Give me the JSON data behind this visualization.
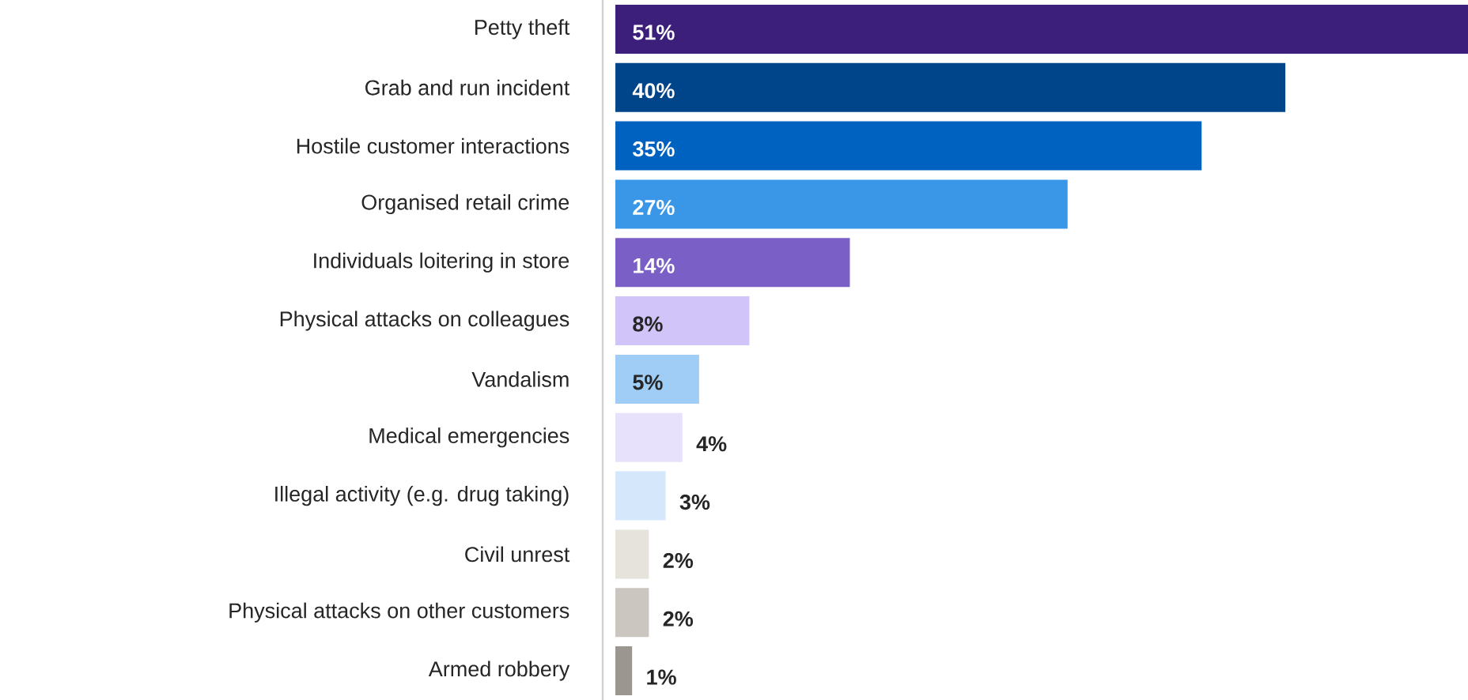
{
  "chart_data": {
    "type": "bar",
    "orientation": "horizontal",
    "categories": [
      "Petty theft",
      "Grab and run incident",
      "Hostile customer interactions",
      "Organised retail crime",
      "Individuals loitering in store",
      "Physical attacks on colleagues",
      "Vandalism",
      "Medical emergencies",
      "Illegal activity (e.g. drug taking)",
      "Civil unrest",
      "Physical attacks on other customers",
      "Armed robbery"
    ],
    "values": [
      51,
      40,
      35,
      27,
      14,
      8,
      5,
      4,
      3,
      2,
      2,
      1
    ],
    "colors": [
      "#3b1f7a",
      "#004489",
      "#0062c0",
      "#3a97e8",
      "#7a5fc7",
      "#d1c4f8",
      "#a0cdf6",
      "#e7e1fb",
      "#d4e7fb",
      "#e6e2dc",
      "#cbc6bf",
      "#9c9691"
    ],
    "value_labels": [
      "51%",
      "40%",
      "35%",
      "27%",
      "14%",
      "8%",
      "5%",
      "4%",
      "3%",
      "2%",
      "2%",
      "1%"
    ]
  }
}
